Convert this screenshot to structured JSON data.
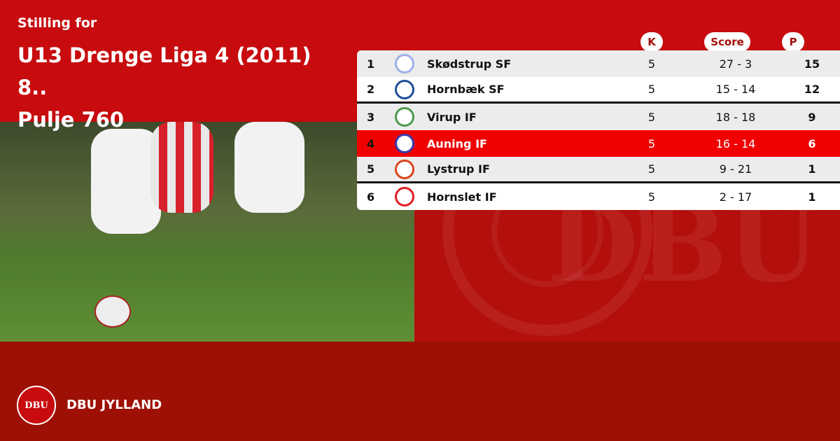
{
  "header": {
    "subtitle": "Stilling for",
    "title_line1": "U13 Drenge Liga 4 (2011) 8..",
    "title_line2": "Pulje 760"
  },
  "columns": {
    "k": "K",
    "score": "Score",
    "p": "P"
  },
  "rows": [
    {
      "pos": "1",
      "team": "Skødstrup SF",
      "k": "5",
      "score": "27 - 3",
      "p": "15",
      "logo_color": "#9db0e8"
    },
    {
      "pos": "2",
      "team": "Hornbæk SF",
      "k": "5",
      "score": "15 - 14",
      "p": "12",
      "logo_color": "#1f4f9a"
    },
    {
      "pos": "3",
      "team": "Virup IF",
      "k": "5",
      "score": "18 - 18",
      "p": "9",
      "logo_color": "#4c9a4c"
    },
    {
      "pos": "4",
      "team": "Auning IF",
      "k": "5",
      "score": "16 - 14",
      "p": "6",
      "logo_color": "#3a3aa8",
      "highlighted": true
    },
    {
      "pos": "5",
      "team": "Lystrup IF",
      "k": "5",
      "score": "9 - 21",
      "p": "1",
      "logo_color": "#d9461c"
    },
    {
      "pos": "6",
      "team": "Hornslet IF",
      "k": "5",
      "score": "2 - 17",
      "p": "1",
      "logo_color": "#e02020"
    }
  ],
  "footer": {
    "brand": "DBU JYLLAND",
    "logo_text": "DBU"
  },
  "colors": {
    "primary": "#c70b0e",
    "highlight": "#f00000",
    "footer": "#9e1006"
  }
}
